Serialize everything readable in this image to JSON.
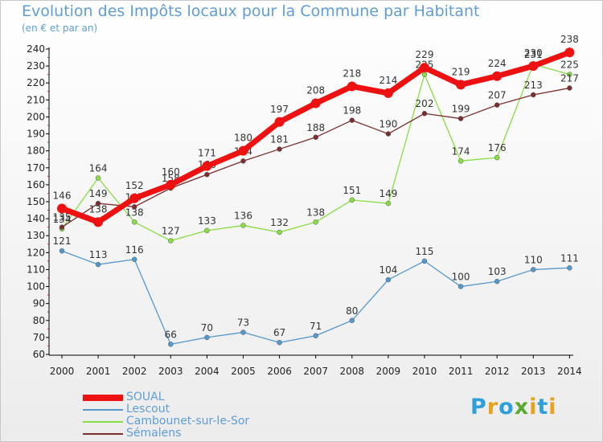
{
  "title": "Evolution des Impôts locaux pour la Commune par Habitant",
  "subtitle": "(en € et par an)",
  "logo": {
    "text": "Proxiti",
    "letter_colors": [
      "#2e9fd9",
      "#e8a21c",
      "#2e9fd9",
      "#5aa832",
      "#e8a21c",
      "#2e9fd9",
      "#e8a21c"
    ]
  },
  "chart_data": {
    "type": "line",
    "x": [
      "2000",
      "2001",
      "2002",
      "2003",
      "2004",
      "2005",
      "2006",
      "2007",
      "2008",
      "2009",
      "2010",
      "2011",
      "2012",
      "2013",
      "2014"
    ],
    "ylim": [
      60,
      240
    ],
    "yticks": [
      "60",
      "70",
      "80",
      "90",
      "100",
      "110",
      "120",
      "130",
      "140",
      "150",
      "160",
      "170",
      "180",
      "190",
      "200",
      "210",
      "220",
      "230",
      "240"
    ],
    "grid": false,
    "legend_position": "bottom-left",
    "series": [
      {
        "name": "SOUAL",
        "color": "#ee1111",
        "values": [
          146,
          138,
          152,
          160,
          171,
          180,
          197,
          208,
          218,
          214,
          229,
          219,
          224,
          230,
          238
        ]
      },
      {
        "name": "Lescout",
        "color": "#5599cc",
        "values": [
          121,
          113,
          116,
          66,
          70,
          73,
          67,
          71,
          80,
          104,
          115,
          100,
          103,
          110,
          111
        ]
      },
      {
        "name": "Cambounet-sur-le-Sor",
        "color": "#88dd44",
        "values": [
          134,
          164,
          138,
          127,
          133,
          136,
          132,
          138,
          151,
          149,
          225,
          174,
          176,
          231,
          225
        ]
      },
      {
        "name": "Sémalens",
        "color": "#7a2e2e",
        "values": [
          135,
          149,
          147,
          158,
          166,
          174,
          181,
          188,
          198,
          190,
          202,
          199,
          207,
          213,
          217
        ]
      }
    ]
  }
}
